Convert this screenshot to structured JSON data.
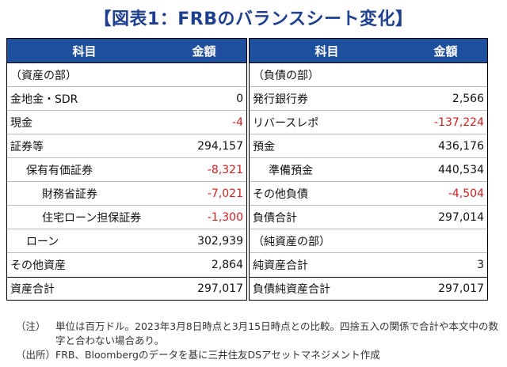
{
  "title": "【図表1：FRBのバランスシート変化】",
  "header": {
    "item": "科目",
    "amount": "金額"
  },
  "assets": {
    "rows": [
      {
        "label": "（資産の部）",
        "value": "",
        "indent": 0
      },
      {
        "label": "金地金・SDR",
        "value": "0",
        "indent": 0
      },
      {
        "label": "現金",
        "value": "-4",
        "indent": 0
      },
      {
        "label": "証券等",
        "value": "294,157",
        "indent": 0
      },
      {
        "label": "保有有価証券",
        "value": "-8,321",
        "indent": 1
      },
      {
        "label": "財務省証券",
        "value": "-7,021",
        "indent": 2
      },
      {
        "label": "住宅ローン担保証券",
        "value": "-1,300",
        "indent": 2
      },
      {
        "label": "ローン",
        "value": "302,939",
        "indent": 1
      },
      {
        "label": "その他資産",
        "value": "2,864",
        "indent": 0
      }
    ],
    "total_label": "資産合計",
    "total_value": "297,017"
  },
  "liabilities": {
    "rows": [
      {
        "label": "（負債の部）",
        "value": "",
        "indent": 0
      },
      {
        "label": "発行銀行券",
        "value": "2,566",
        "indent": 0
      },
      {
        "label": "リバースレポ",
        "value": "-137,224",
        "indent": 0
      },
      {
        "label": "預金",
        "value": "436,176",
        "indent": 0
      },
      {
        "label": "準備預金",
        "value": "440,534",
        "indent": 1
      },
      {
        "label": "その他負債",
        "value": "-4,504",
        "indent": 0
      },
      {
        "label": "負債合計",
        "value": "297,014",
        "indent": 0
      },
      {
        "label": "（純資産の部）",
        "value": "",
        "indent": 0
      },
      {
        "label": "純資産合計",
        "value": "3",
        "indent": 0
      }
    ],
    "total_label": "負債純資産合計",
    "total_value": "297,017"
  },
  "notes": [
    {
      "tag": "（注）",
      "text": "単位は百万ドル。2023年3月8日時点と3月15日時点との比較。四捨五入の関係で合計や本文中の数字と合わない場合あり。"
    },
    {
      "tag": "（出所）",
      "text": "FRB、Bloombergのデータを基に三井住友DSアセットマネジメント作成"
    }
  ],
  "colors": {
    "header_bg": "#1f4f9f",
    "title": "#1f3f8f",
    "negative": "#cc2020"
  }
}
